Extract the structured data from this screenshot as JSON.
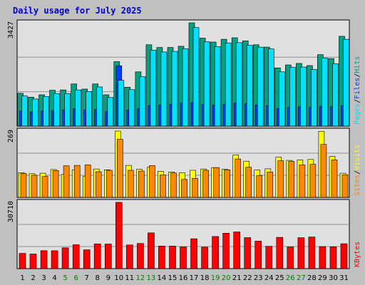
{
  "title": "Daily usage for July 2025",
  "colors": {
    "background": "#C0C0C0",
    "plot_bg": "#E0E0E0",
    "title": "#0000C0",
    "hits": "#00A080",
    "files": "#0040FF",
    "pages": "#00E0FF",
    "visits": "#FFFF00",
    "sites": "#FF8800",
    "kbytes": "#FF0000",
    "weekend_label": "#007F00"
  },
  "chart_data": [
    {
      "type": "bar",
      "panel": "requests",
      "max_label": "3427",
      "ylim": [
        0,
        3427
      ],
      "right_labels": [
        "Pages",
        "Files",
        "Hits"
      ],
      "series": [
        {
          "name": "Hits",
          "values": [
            1090,
            960,
            1040,
            1190,
            1200,
            1400,
            1230,
            1400,
            1040,
            2140,
            1290,
            1800,
            2700,
            2610,
            2610,
            2650,
            3427,
            2920,
            2790,
            2880,
            2930,
            2830,
            2700,
            2620,
            1930,
            2030,
            2080,
            2010,
            2370,
            2240,
            2980
          ]
        },
        {
          "name": "Files",
          "values": [
            500,
            470,
            500,
            520,
            540,
            580,
            540,
            560,
            480,
            2000,
            540,
            580,
            680,
            700,
            720,
            760,
            780,
            720,
            700,
            720,
            760,
            740,
            700,
            680,
            580,
            620,
            640,
            620,
            660,
            640,
            680
          ]
        },
        {
          "name": "Pages",
          "values": [
            1000,
            900,
            980,
            1080,
            1080,
            1200,
            1150,
            1300,
            950,
            1520,
            1210,
            1640,
            2520,
            2460,
            2480,
            2570,
            3270,
            2800,
            2640,
            2760,
            2770,
            2680,
            2620,
            2560,
            1800,
            1950,
            1960,
            1880,
            2260,
            2070,
            2880
          ]
        }
      ]
    },
    {
      "type": "bar",
      "panel": "visitors",
      "max_label": "269",
      "ylim": [
        0,
        269
      ],
      "right_labels": [
        "Sites",
        "Visits"
      ],
      "series": [
        {
          "name": "Visits",
          "values": [
            100,
            96,
            98,
            113,
            93,
            112,
            85,
            115,
            112,
            269,
            130,
            114,
            122,
            106,
            103,
            100,
            110,
            115,
            121,
            114,
            172,
            147,
            111,
            116,
            163,
            150,
            152,
            154,
            268,
            166,
            98
          ]
        },
        {
          "name": "Sites",
          "values": [
            97,
            90,
            85,
            109,
            128,
            130,
            132,
            104,
            110,
            236,
            110,
            107,
            129,
            91,
            99,
            73,
            77,
            110,
            121,
            112,
            156,
            122,
            89,
            103,
            149,
            146,
            132,
            134,
            215,
            152,
            92
          ]
        }
      ]
    },
    {
      "type": "bar",
      "panel": "kbytes",
      "max_label": "30710",
      "ylim": [
        0,
        30710
      ],
      "right_labels": [
        "KBytes"
      ],
      "series": [
        {
          "name": "KBytes",
          "values": [
            7080,
            6760,
            8330,
            8290,
            9630,
            11070,
            8720,
            11460,
            11390,
            30710,
            10970,
            11650,
            16580,
            10470,
            10450,
            10070,
            13830,
            9950,
            14880,
            16420,
            17020,
            14380,
            12740,
            10340,
            14510,
            10040,
            14320,
            14660,
            10190,
            10150,
            11540
          ]
        }
      ]
    }
  ],
  "x_labels": [
    "1",
    "2",
    "3",
    "4",
    "5",
    "6",
    "7",
    "8",
    "9",
    "10",
    "11",
    "12",
    "13",
    "14",
    "15",
    "16",
    "17",
    "18",
    "19",
    "20",
    "21",
    "22",
    "23",
    "24",
    "25",
    "26",
    "27",
    "28",
    "29",
    "30",
    "31"
  ],
  "weekend_days": [
    "5",
    "6",
    "12",
    "13",
    "19",
    "20",
    "26",
    "27"
  ]
}
